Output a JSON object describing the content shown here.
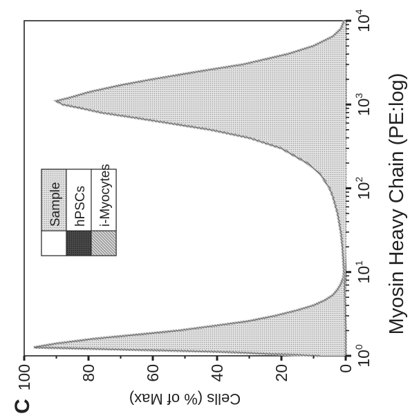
{
  "panel_label": "C",
  "chart_data": {
    "type": "area",
    "title": "",
    "xlabel": "Myosin Heavy Chain (PE:log)",
    "ylabel": "Cells (% of Max)",
    "x_scale": "log",
    "xlim": [
      1,
      10000
    ],
    "ylim": [
      0,
      100
    ],
    "x_ticks": [
      {
        "value": 1,
        "base": "10",
        "exp": "0"
      },
      {
        "value": 10,
        "base": "10",
        "exp": "1"
      },
      {
        "value": 100,
        "base": "10",
        "exp": "2"
      },
      {
        "value": 1000,
        "base": "10",
        "exp": "3"
      },
      {
        "value": 10000,
        "base": "10",
        "exp": "4"
      }
    ],
    "y_ticks": [
      0,
      20,
      40,
      60,
      80,
      100
    ],
    "legend": {
      "placement": "top-left",
      "entries": [
        "Sample",
        "hPSCs",
        "i-Myocytes"
      ]
    },
    "series": [
      {
        "name": "hPSCs",
        "color": "#9a9a9a",
        "x": [
          1,
          1.12,
          1.26,
          1.4,
          1.6,
          1.8,
          2.0,
          2.3,
          2.6,
          3.0,
          3.5,
          4.0,
          4.6,
          5.3,
          6.2,
          7.2,
          8.5,
          10,
          20,
          50,
          100,
          200,
          500,
          1000,
          2000,
          5000,
          10000
        ],
        "y": [
          8,
          40,
          97,
          90,
          78,
          64,
          52,
          40,
          30,
          22,
          15,
          10,
          6.5,
          4,
          2.5,
          1.5,
          0.8,
          0.5,
          0.2,
          0.1,
          0.1,
          0.1,
          0.1,
          0,
          0,
          0,
          0
        ]
      },
      {
        "name": "i-Myocytes",
        "color": "#6a6a6a",
        "x": [
          1,
          2,
          5,
          10,
          15,
          20,
          30,
          50,
          80,
          100,
          150,
          200,
          300,
          400,
          500,
          600,
          700,
          800,
          900,
          1000,
          1100,
          1200,
          1400,
          1700,
          2000,
          2500,
          3000,
          4000,
          5000,
          6500,
          8000,
          10000
        ],
        "y": [
          0,
          0,
          0.2,
          0.5,
          0.8,
          1,
          1.5,
          2.5,
          4,
          5,
          8,
          12,
          20,
          30,
          42,
          55,
          66,
          76,
          82,
          88,
          90,
          86,
          80,
          70,
          60,
          45,
          32,
          18,
          10,
          4,
          1.5,
          0.5
        ]
      }
    ]
  }
}
